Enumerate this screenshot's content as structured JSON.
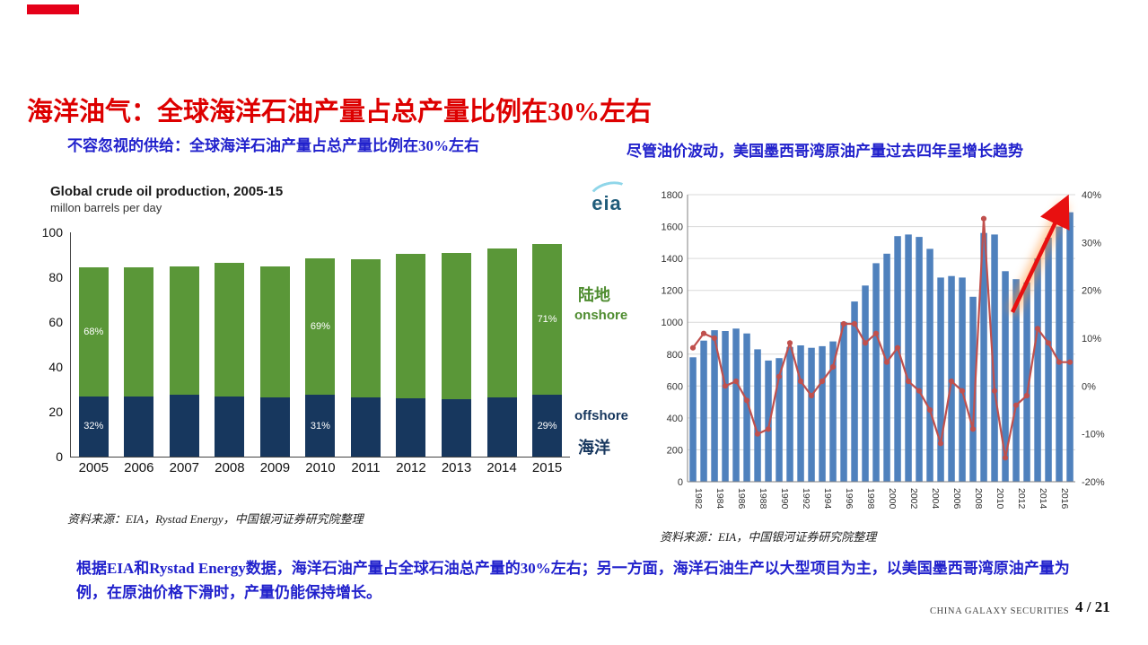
{
  "slide": {
    "title": "海洋油气：全球海洋石油产量占总产量比例在30%左右",
    "subtitle_left": "不容忽视的供给：全球海洋石油产量占总产量比例在30%左右",
    "subtitle_right": "尽管油价波动，美国墨西哥湾原油产量过去四年呈增长趋势",
    "body_text": "根据EIA和Rystad Energy数据，海洋石油产量占全球石油总产量的30%左右；另一方面，海洋石油生产以大型项目为主，以美国墨西哥湾原油产量为例，在原油价格下滑时，产量仍能保持增长。",
    "source_left": "资料来源：EIA，Rystad Energy，中国银河证券研究院整理",
    "source_right": "资料来源：EIA，中国银河证券研究院整理",
    "footer_brand": "CHINA GALAXY SECURITIES",
    "page_number": "4 / 21"
  },
  "colors": {
    "title_red": "#dd0000",
    "accent_red": "#e50019",
    "text_blue": "#2121cc",
    "onshore_green": "#5a9738",
    "offshore_navy": "#17375e",
    "bar_blue": "#4f81bd",
    "line_red": "#c0504d",
    "grid_gray": "#d9d9d9"
  },
  "chart_data": [
    {
      "type": "bar",
      "stacked": true,
      "title": "Global crude oil production, 2005-15",
      "subtitle": "millon barrels per day",
      "logo_text": "eia",
      "categories": [
        2005,
        2006,
        2007,
        2008,
        2009,
        2010,
        2011,
        2012,
        2013,
        2014,
        2015
      ],
      "series": [
        {
          "name": "offshore",
          "color": "#17375e",
          "values": [
            27,
            27,
            27.5,
            27,
            26.5,
            27.5,
            26.5,
            26,
            25.5,
            26.5,
            27.5
          ]
        },
        {
          "name": "onshore",
          "color": "#5a9738",
          "values": [
            57.5,
            57.5,
            57.5,
            59.5,
            58.5,
            61,
            61.5,
            64.5,
            65.5,
            66.5,
            67.5
          ]
        }
      ],
      "ylim": [
        0,
        100
      ],
      "yticks": [
        0,
        20,
        40,
        60,
        80,
        100
      ],
      "bar_labels": {
        "2005": {
          "onshore": "68%",
          "offshore": "32%"
        },
        "2010": {
          "onshore": "69%",
          "offshore": "31%"
        },
        "2015": {
          "onshore": "71%",
          "offshore": "29%"
        }
      },
      "side_labels": {
        "onshore_cn": "陆地",
        "onshore_en": "onshore",
        "offshore_en": "offshore",
        "offshore_cn": "海洋"
      },
      "legend_position": "right",
      "grid": false
    },
    {
      "type": "combo",
      "x_years": [
        1982,
        1983,
        1984,
        1985,
        1986,
        1987,
        1988,
        1989,
        1990,
        1991,
        1992,
        1993,
        1994,
        1995,
        1996,
        1997,
        1998,
        1999,
        2000,
        2001,
        2002,
        2003,
        2004,
        2005,
        2006,
        2007,
        2008,
        2009,
        2010,
        2011,
        2012,
        2013,
        2014,
        2015,
        2016,
        2017
      ],
      "bars": [
        780,
        885,
        950,
        945,
        960,
        930,
        830,
        760,
        775,
        845,
        855,
        840,
        850,
        880,
        1000,
        1130,
        1230,
        1370,
        1430,
        1540,
        1550,
        1535,
        1460,
        1280,
        1290,
        1280,
        1160,
        1560,
        1550,
        1320,
        1270,
        1250,
        1400,
        1530,
        1600,
        1690
      ],
      "line_pct": [
        8,
        11,
        10,
        0,
        1,
        -3,
        -10,
        -9,
        2,
        9,
        1,
        -2,
        1,
        4,
        13,
        13,
        9,
        11,
        5,
        8,
        1,
        -1,
        -5,
        -12,
        1,
        -1,
        -9,
        35,
        -1,
        -15,
        -4,
        -2,
        12,
        9,
        5,
        5
      ],
      "ylim_left": [
        0,
        1800
      ],
      "yticks_left": [
        0,
        200,
        400,
        600,
        800,
        1000,
        1200,
        1400,
        1600,
        1800
      ],
      "yticks_right_labels": [
        "-20%",
        "-10%",
        "0%",
        "10%",
        "20%",
        "30%",
        "40%"
      ],
      "xtick_labels": [
        "1982",
        "1984",
        "1986",
        "1988",
        "1990",
        "1992",
        "1994",
        "1996",
        "1998",
        "2000",
        "2002",
        "2004",
        "2006",
        "2008",
        "2010",
        "2012",
        "2014",
        "2016"
      ],
      "bar_color": "#4f81bd",
      "line_color": "#c0504d",
      "annotation": "red-upward-arrow",
      "grid": true
    }
  ]
}
